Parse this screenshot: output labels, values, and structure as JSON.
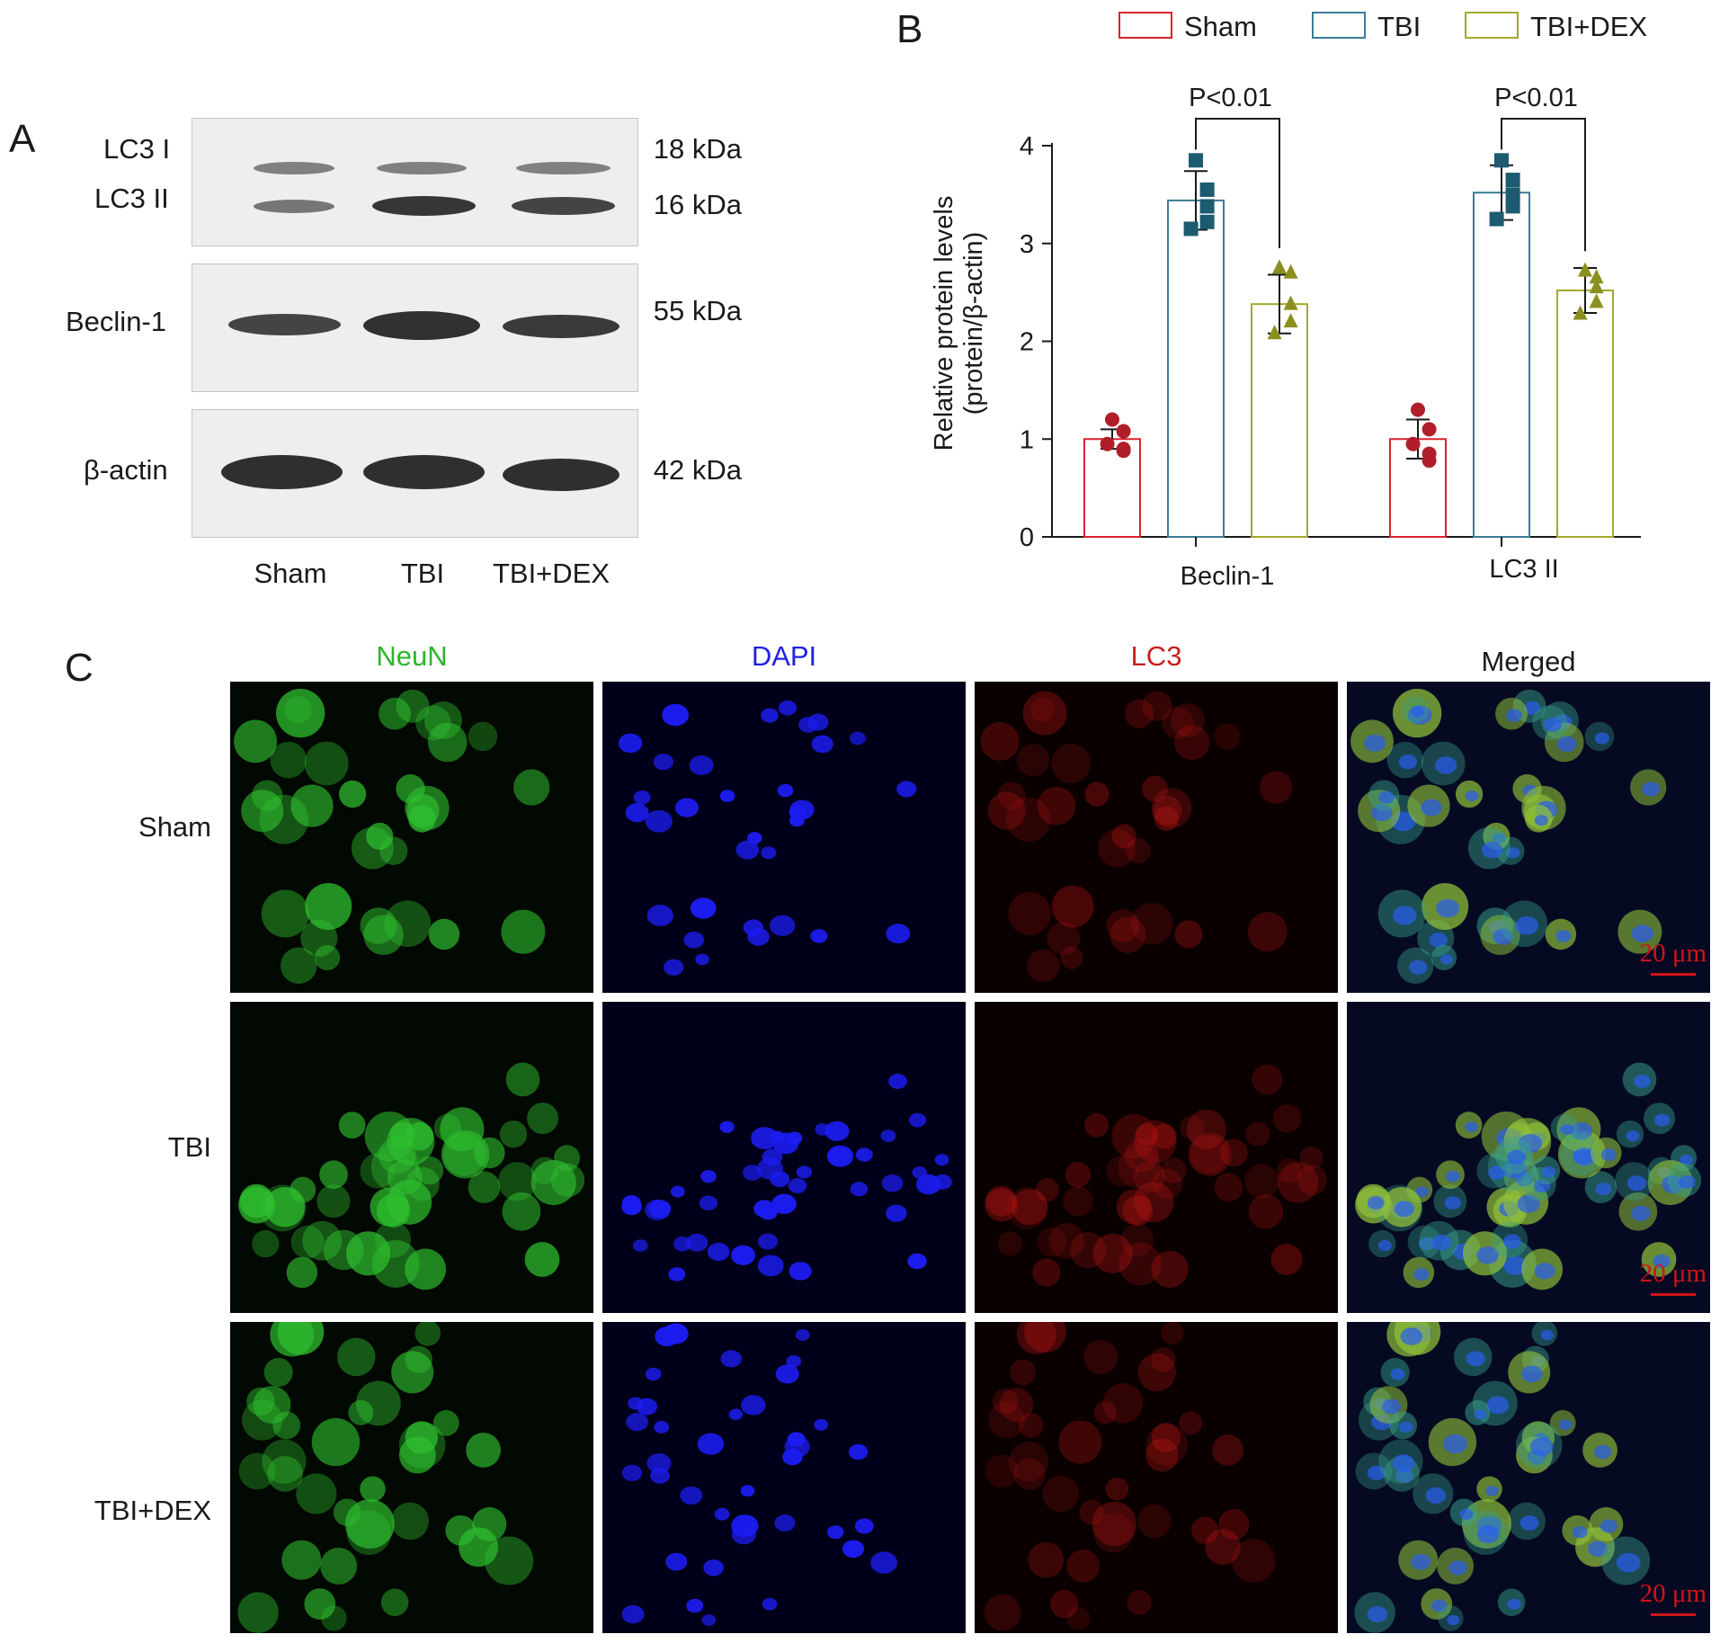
{
  "panel_labels": {
    "a": "A",
    "b": "B",
    "c": "C"
  },
  "panel_a": {
    "band_labels": {
      "lc3_1": "LC3 I",
      "lc3_2": "LC3 II",
      "beclin": "Beclin-1",
      "actin": "β-actin"
    },
    "sizes": {
      "lc3_1": "18 kDa",
      "lc3_2": "16 kDa",
      "beclin": "55 kDa",
      "actin": "42 kDa"
    },
    "lanes": [
      "Sham",
      "TBI",
      "TBI+DEX"
    ]
  },
  "chart_data": {
    "type": "bar",
    "categories": [
      "Beclin-1",
      "LC3 II"
    ],
    "series": [
      {
        "name": "Sham",
        "color": "#d9232e",
        "point_color": "#b01e2a",
        "marker": "circle",
        "values": [
          1.0,
          1.0
        ],
        "sd": [
          0.1,
          0.2
        ],
        "points": [
          [
            1.2,
            1.08,
            0.9,
            0.88,
            0.95
          ],
          [
            1.3,
            1.1,
            0.85,
            0.78,
            0.95
          ]
        ]
      },
      {
        "name": "TBI",
        "color": "#3b7c97",
        "point_color": "#1c5b70",
        "marker": "square",
        "values": [
          3.44,
          3.52
        ],
        "sd": [
          0.3,
          0.28
        ],
        "points": [
          [
            3.85,
            3.55,
            3.38,
            3.22,
            3.15
          ],
          [
            3.85,
            3.65,
            3.5,
            3.38,
            3.25
          ]
        ]
      },
      {
        "name": "TBI+DEX",
        "color": "#a3a82e",
        "point_color": "#8a8f1f",
        "marker": "triangle",
        "values": [
          2.38,
          2.52
        ],
        "sd": [
          0.3,
          0.23
        ],
        "points": [
          [
            2.75,
            2.7,
            2.38,
            2.2,
            2.08
          ],
          [
            2.72,
            2.65,
            2.55,
            2.4,
            2.28
          ]
        ]
      }
    ],
    "ylabel_lines": [
      "Relative protein levels",
      "(protein/β-actin)"
    ],
    "ylim": [
      0,
      4
    ],
    "yticks": [
      0,
      1,
      2,
      3,
      4
    ],
    "annotations": [
      "P<0.01",
      "P<0.01"
    ],
    "legend_position": "top"
  },
  "panel_c": {
    "columns": [
      "NeuN",
      "DAPI",
      "LC3",
      "Merged"
    ],
    "column_colors": [
      "#2db52d",
      "#2020e6",
      "#c81e1e",
      "#1a1a1a"
    ],
    "rows": [
      "Sham",
      "TBI",
      "TBI+DEX"
    ],
    "scale_bar": "20 μm"
  }
}
